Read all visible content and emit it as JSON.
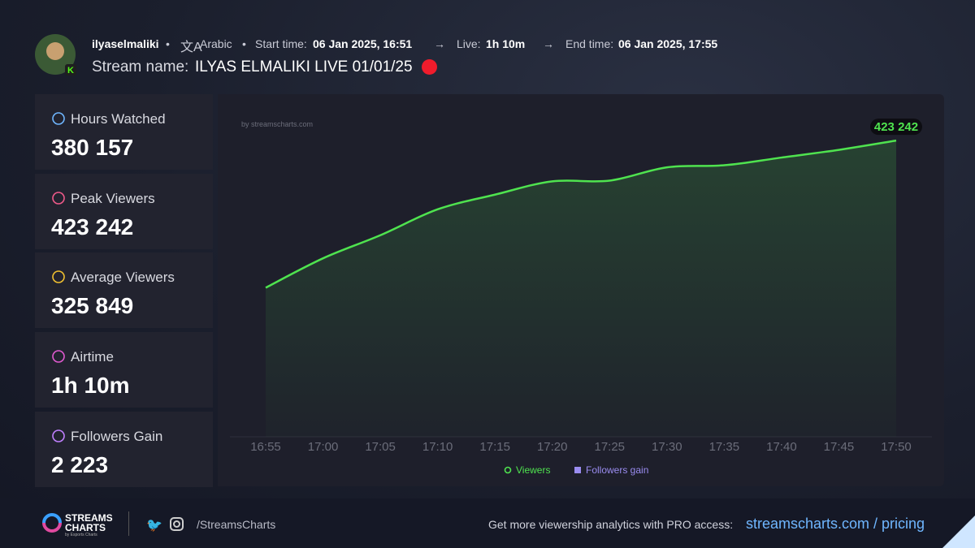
{
  "header": {
    "username": "ilyaselmaliki",
    "language": "Arabic",
    "start_label": "Start time:",
    "start_value": "06 Jan 2025, 16:51",
    "live_label": "Live:",
    "live_value": "1h 10m",
    "end_label": "End time:",
    "end_value": "06 Jan 2025, 17:55",
    "stream_label": "Stream name:",
    "stream_name": "ILYAS ELMALIKI LIVE 01/01/25"
  },
  "stats": [
    {
      "label": "Hours Watched",
      "value": "380 157"
    },
    {
      "label": "Peak Viewers",
      "value": "423 242"
    },
    {
      "label": "Average Viewers",
      "value": "325 849"
    },
    {
      "label": "Airtime",
      "value": "1h 10m"
    },
    {
      "label": "Followers Gain",
      "value": "2 223"
    }
  ],
  "chart_data": {
    "type": "line",
    "watermark": "by streamscharts.com",
    "categories": [
      "16:55",
      "17:00",
      "17:05",
      "17:10",
      "17:15",
      "17:20",
      "17:25",
      "17:30",
      "17:35",
      "17:40",
      "17:45",
      "17:50"
    ],
    "series": [
      {
        "name": "Viewers",
        "color": "#4fe34f",
        "values": [
          213000,
          255000,
          288000,
          325000,
          346000,
          365000,
          366000,
          385000,
          388000,
          399000,
          410000,
          423242
        ],
        "value_labels": [
          null,
          null,
          null,
          null,
          null,
          null,
          null,
          null,
          null,
          null,
          null,
          "423 242"
        ]
      }
    ],
    "legend": [
      {
        "name": "Viewers",
        "color": "#4fe34f"
      },
      {
        "name": "Followers gain",
        "color": "#9a8cf0"
      }
    ],
    "ylim": [
      0,
      500000
    ]
  },
  "footer": {
    "brand_top": "STREAMS",
    "brand_bottom": "CHARTS",
    "brand_sub": "by Esports Charts",
    "handle": "/StreamsCharts",
    "promo": "Get more viewership analytics with PRO access:",
    "link": "streamscharts.com / pricing"
  }
}
